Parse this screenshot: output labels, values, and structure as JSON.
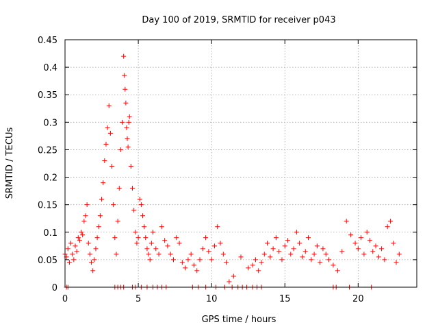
{
  "chart_data": {
    "type": "scatter",
    "title": "Day 100 of 2019, SRMTID for receiver p043",
    "xlabel": "GPS time / hours",
    "ylabel": "SRMTID / TECUs",
    "xlim": [
      0,
      24
    ],
    "ylim": [
      0,
      0.45
    ],
    "x_ticks": [
      0,
      5,
      10,
      15,
      20
    ],
    "x_tick_labels": [
      "0",
      "5",
      "10",
      "15",
      "20"
    ],
    "y_ticks": [
      0,
      0.05,
      0.1,
      0.15,
      0.2,
      0.25,
      0.3,
      0.35,
      0.4,
      0.45
    ],
    "y_tick_labels": [
      "0",
      "0.05",
      "0.1",
      "0.15",
      "0.2",
      "0.25",
      "0.3",
      "0.35",
      "0.4",
      "0.45"
    ],
    "grid": true,
    "marker": "+",
    "color": "#ff0000",
    "series": [
      {
        "name": "SRMTID",
        "x": [
          0.0,
          0.1,
          0.2,
          0.3,
          0.4,
          0.5,
          0.6,
          0.7,
          0.8,
          0.9,
          1.0,
          1.1,
          1.2,
          1.3,
          1.4,
          1.5,
          1.6,
          1.7,
          1.8,
          1.9,
          2.0,
          2.1,
          2.2,
          2.3,
          2.4,
          2.5,
          2.6,
          2.7,
          2.8,
          2.9,
          3.0,
          3.1,
          3.2,
          3.3,
          3.4,
          3.5,
          3.6,
          3.7,
          3.8,
          3.9,
          4.0,
          4.05,
          4.1,
          4.15,
          4.2,
          4.25,
          4.3,
          4.35,
          4.4,
          4.5,
          4.6,
          4.7,
          4.8,
          4.9,
          5.0,
          5.1,
          5.2,
          5.3,
          5.4,
          5.5,
          5.6,
          5.7,
          5.8,
          5.9,
          6.0,
          6.2,
          6.4,
          6.6,
          6.8,
          7.0,
          7.2,
          7.4,
          7.6,
          7.8,
          8.0,
          8.2,
          8.4,
          8.6,
          8.8,
          9.0,
          9.2,
          9.4,
          9.6,
          9.8,
          10.0,
          10.2,
          10.4,
          10.6,
          10.8,
          11.0,
          11.2,
          11.5,
          12.0,
          12.5,
          12.8,
          13.0,
          13.2,
          13.4,
          13.6,
          13.8,
          14.0,
          14.2,
          14.4,
          14.6,
          14.8,
          15.0,
          15.2,
          15.4,
          15.6,
          15.8,
          16.0,
          16.2,
          16.4,
          16.6,
          16.8,
          17.0,
          17.2,
          17.4,
          17.6,
          17.8,
          18.0,
          18.3,
          18.6,
          18.9,
          19.2,
          19.5,
          19.8,
          20.0,
          20.2,
          20.4,
          20.6,
          20.8,
          21.0,
          21.2,
          21.4,
          21.6,
          21.8,
          22.0,
          22.2,
          22.4,
          22.6,
          22.8
        ],
        "y": [
          0.06,
          0.055,
          0.07,
          0.045,
          0.08,
          0.06,
          0.05,
          0.075,
          0.065,
          0.09,
          0.085,
          0.1,
          0.095,
          0.12,
          0.13,
          0.15,
          0.08,
          0.06,
          0.045,
          0.03,
          0.05,
          0.07,
          0.09,
          0.11,
          0.13,
          0.16,
          0.19,
          0.23,
          0.26,
          0.29,
          0.33,
          0.28,
          0.22,
          0.15,
          0.09,
          0.06,
          0.12,
          0.18,
          0.25,
          0.3,
          0.42,
          0.385,
          0.36,
          0.335,
          0.29,
          0.27,
          0.255,
          0.3,
          0.31,
          0.22,
          0.18,
          0.14,
          0.1,
          0.08,
          0.09,
          0.16,
          0.15,
          0.13,
          0.11,
          0.09,
          0.07,
          0.06,
          0.05,
          0.08,
          0.1,
          0.07,
          0.06,
          0.11,
          0.085,
          0.075,
          0.06,
          0.05,
          0.09,
          0.08,
          0.045,
          0.035,
          0.05,
          0.06,
          0.04,
          0.03,
          0.05,
          0.07,
          0.09,
          0.065,
          0.05,
          0.075,
          0.11,
          0.08,
          0.06,
          0.045,
          0.01,
          0.02,
          0.055,
          0.035,
          0.04,
          0.05,
          0.03,
          0.045,
          0.06,
          0.08,
          0.055,
          0.07,
          0.09,
          0.065,
          0.05,
          0.075,
          0.085,
          0.06,
          0.07,
          0.1,
          0.08,
          0.055,
          0.065,
          0.09,
          0.05,
          0.06,
          0.075,
          0.045,
          0.07,
          0.06,
          0.05,
          0.04,
          0.03,
          0.065,
          0.12,
          0.095,
          0.08,
          0.07,
          0.09,
          0.06,
          0.1,
          0.085,
          0.065,
          0.075,
          0.055,
          0.07,
          0.05,
          0.11,
          0.12,
          0.08,
          0.045,
          0.06
        ],
        "zero_x": [
          0.1,
          0.2,
          3.4,
          3.6,
          3.8,
          4.0,
          4.6,
          4.8,
          5.2,
          5.6,
          6.0,
          6.3,
          6.6,
          6.9,
          8.7,
          9.1,
          9.6,
          10.3,
          10.9,
          11.4,
          11.8,
          12.1,
          12.4,
          12.8,
          13.1,
          13.4,
          18.3,
          18.5,
          19.4,
          20.9
        ]
      }
    ]
  }
}
